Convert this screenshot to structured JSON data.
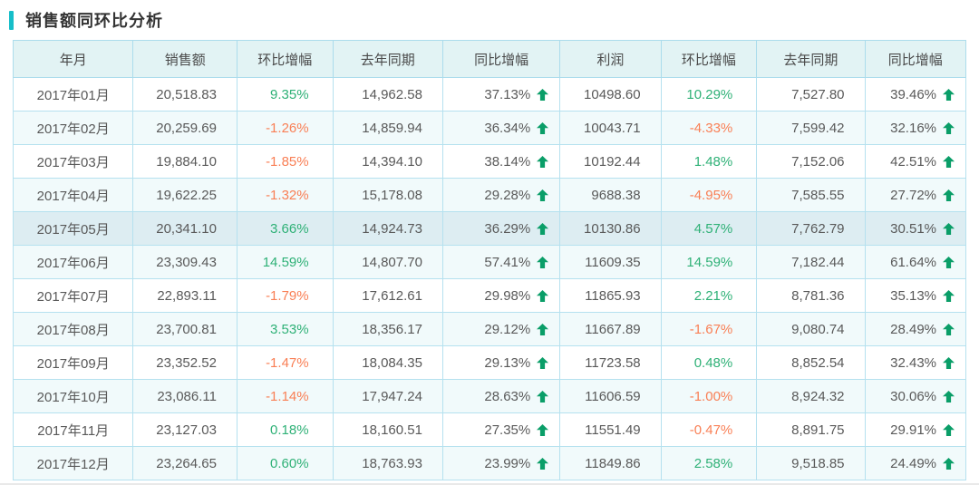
{
  "page_title": "销售额同环比分析",
  "colors": {
    "accent": "#16bec9",
    "header_bg": "#e2f3f4",
    "border": "#abdcec",
    "stripe_bg": "#f1fafb",
    "highlight_bg": "#ddedf2",
    "positive_green": "#2fb177",
    "negative_orange": "#f97f55",
    "arrow_green": "#0a9e68",
    "text": "#595959"
  },
  "chart_data": {
    "type": "table",
    "title": "销售额同环比分析",
    "columns": [
      "年月",
      "销售额",
      "环比增幅",
      "去年同期",
      "同比增幅",
      "利润",
      "环比增幅",
      "去年同期",
      "同比增幅"
    ],
    "highlighted_row_index": 4,
    "rows": [
      {
        "month": "2017年01月",
        "sales": "20,518.83",
        "sales_mom": "9.35%",
        "sales_ly": "14,962.58",
        "sales_yoy": "37.13%",
        "profit": "10498.60",
        "profit_mom": "10.29%",
        "profit_ly": "7,527.80",
        "profit_yoy": "39.46%"
      },
      {
        "month": "2017年02月",
        "sales": "20,259.69",
        "sales_mom": "-1.26%",
        "sales_ly": "14,859.94",
        "sales_yoy": "36.34%",
        "profit": "10043.71",
        "profit_mom": "-4.33%",
        "profit_ly": "7,599.42",
        "profit_yoy": "32.16%"
      },
      {
        "month": "2017年03月",
        "sales": "19,884.10",
        "sales_mom": "-1.85%",
        "sales_ly": "14,394.10",
        "sales_yoy": "38.14%",
        "profit": "10192.44",
        "profit_mom": "1.48%",
        "profit_ly": "7,152.06",
        "profit_yoy": "42.51%"
      },
      {
        "month": "2017年04月",
        "sales": "19,622.25",
        "sales_mom": "-1.32%",
        "sales_ly": "15,178.08",
        "sales_yoy": "29.28%",
        "profit": "9688.38",
        "profit_mom": "-4.95%",
        "profit_ly": "7,585.55",
        "profit_yoy": "27.72%"
      },
      {
        "month": "2017年05月",
        "sales": "20,341.10",
        "sales_mom": "3.66%",
        "sales_ly": "14,924.73",
        "sales_yoy": "36.29%",
        "profit": "10130.86",
        "profit_mom": "4.57%",
        "profit_ly": "7,762.79",
        "profit_yoy": "30.51%"
      },
      {
        "month": "2017年06月",
        "sales": "23,309.43",
        "sales_mom": "14.59%",
        "sales_ly": "14,807.70",
        "sales_yoy": "57.41%",
        "profit": "11609.35",
        "profit_mom": "14.59%",
        "profit_ly": "7,182.44",
        "profit_yoy": "61.64%"
      },
      {
        "month": "2017年07月",
        "sales": "22,893.11",
        "sales_mom": "-1.79%",
        "sales_ly": "17,612.61",
        "sales_yoy": "29.98%",
        "profit": "11865.93",
        "profit_mom": "2.21%",
        "profit_ly": "8,781.36",
        "profit_yoy": "35.13%"
      },
      {
        "month": "2017年08月",
        "sales": "23,700.81",
        "sales_mom": "3.53%",
        "sales_ly": "18,356.17",
        "sales_yoy": "29.12%",
        "profit": "11667.89",
        "profit_mom": "-1.67%",
        "profit_ly": "9,080.74",
        "profit_yoy": "28.49%"
      },
      {
        "month": "2017年09月",
        "sales": "23,352.52",
        "sales_mom": "-1.47%",
        "sales_ly": "18,084.35",
        "sales_yoy": "29.13%",
        "profit": "11723.58",
        "profit_mom": "0.48%",
        "profit_ly": "8,852.54",
        "profit_yoy": "32.43%"
      },
      {
        "month": "2017年10月",
        "sales": "23,086.11",
        "sales_mom": "-1.14%",
        "sales_ly": "17,947.24",
        "sales_yoy": "28.63%",
        "profit": "11606.59",
        "profit_mom": "-1.00%",
        "profit_ly": "8,924.32",
        "profit_yoy": "30.06%"
      },
      {
        "month": "2017年11月",
        "sales": "23,127.03",
        "sales_mom": "0.18%",
        "sales_ly": "18,160.51",
        "sales_yoy": "27.35%",
        "profit": "11551.49",
        "profit_mom": "-0.47%",
        "profit_ly": "8,891.75",
        "profit_yoy": "29.91%"
      },
      {
        "month": "2017年12月",
        "sales": "23,264.65",
        "sales_mom": "0.60%",
        "sales_ly": "18,763.93",
        "sales_yoy": "23.99%",
        "profit": "11849.86",
        "profit_mom": "2.58%",
        "profit_ly": "9,518.85",
        "profit_yoy": "24.49%"
      }
    ]
  }
}
